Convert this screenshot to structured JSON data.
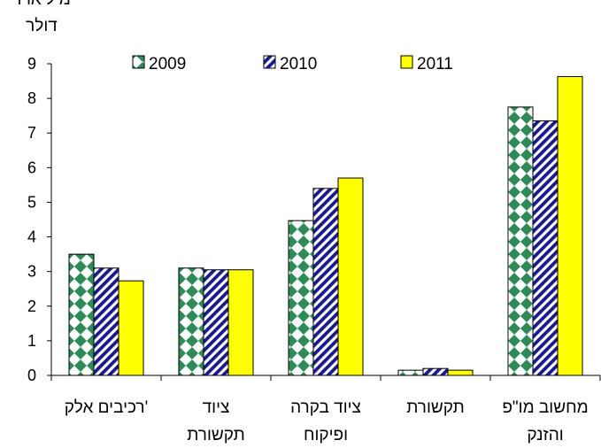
{
  "chart_data": {
    "type": "bar",
    "title": "",
    "ylabel_lines": [
      "מיליארד",
      "דולר"
    ],
    "ylim": [
      0,
      9
    ],
    "yticks": [
      0,
      1,
      2,
      3,
      4,
      5,
      6,
      7,
      8,
      9
    ],
    "categories": [
      [
        "רכיבים אלק'"
      ],
      [
        "ציוד",
        "תקשורת"
      ],
      [
        "ציוד בקרה",
        "ופיקוח"
      ],
      [
        "תקשורת"
      ],
      [
        "מחשוב מו\"פ",
        "והזנק"
      ]
    ],
    "series": [
      {
        "name": "2009",
        "pattern": "diamond-check",
        "color": "#2e8b57",
        "values": [
          3.5,
          3.1,
          4.47,
          0.15,
          7.75
        ]
      },
      {
        "name": "2010",
        "pattern": "diagonal-stripes",
        "color": "#1a1a8c",
        "values": [
          3.1,
          3.05,
          5.4,
          0.2,
          7.35
        ]
      },
      {
        "name": "2011",
        "pattern": "solid",
        "color": "#ffff00",
        "values": [
          2.73,
          3.05,
          5.7,
          0.15,
          8.63
        ]
      }
    ],
    "grid": false,
    "legend": "top"
  }
}
